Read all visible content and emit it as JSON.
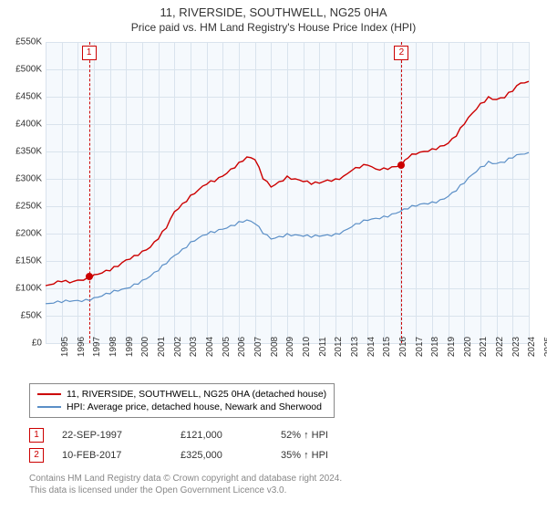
{
  "title": "11, RIVERSIDE, SOUTHWELL, NG25 0HA",
  "subtitle": "Price paid vs. HM Land Registry's House Price Index (HPI)",
  "chart": {
    "type": "line",
    "background_color": "#f5f9fd",
    "grid_color": "#d9e3ed",
    "ylim": [
      0,
      550000
    ],
    "ytick_step": 50000,
    "y_labels": [
      "£0",
      "£50K",
      "£100K",
      "£150K",
      "£200K",
      "£250K",
      "£300K",
      "£350K",
      "£400K",
      "£450K",
      "£500K",
      "£550K"
    ],
    "xlim": [
      1995,
      2025
    ],
    "x_labels": [
      "1995",
      "1996",
      "1997",
      "1998",
      "1999",
      "2000",
      "2001",
      "2002",
      "2003",
      "2004",
      "2005",
      "2006",
      "2007",
      "2008",
      "2009",
      "2010",
      "2011",
      "2012",
      "2013",
      "2014",
      "2015",
      "2016",
      "2017",
      "2018",
      "2019",
      "2020",
      "2021",
      "2022",
      "2023",
      "2024",
      "2025"
    ],
    "label_fontsize": 10,
    "series": [
      {
        "name": "property",
        "color": "#cc0000",
        "line_width": 1.4,
        "data": [
          [
            1995,
            105000
          ],
          [
            1995.5,
            108000
          ],
          [
            1996,
            112000
          ],
          [
            1996.5,
            110000
          ],
          [
            1997,
            115000
          ],
          [
            1997.7,
            121000
          ],
          [
            1998,
            125000
          ],
          [
            1998.5,
            128000
          ],
          [
            1999,
            132000
          ],
          [
            1999.5,
            140000
          ],
          [
            2000,
            152000
          ],
          [
            2000.5,
            160000
          ],
          [
            2001,
            168000
          ],
          [
            2001.5,
            175000
          ],
          [
            2002,
            190000
          ],
          [
            2002.5,
            210000
          ],
          [
            2003,
            240000
          ],
          [
            2003.5,
            255000
          ],
          [
            2004,
            270000
          ],
          [
            2004.5,
            280000
          ],
          [
            2005,
            290000
          ],
          [
            2005.5,
            295000
          ],
          [
            2006,
            305000
          ],
          [
            2006.5,
            318000
          ],
          [
            2007,
            330000
          ],
          [
            2007.5,
            340000
          ],
          [
            2008,
            335000
          ],
          [
            2008.5,
            300000
          ],
          [
            2009,
            285000
          ],
          [
            2009.5,
            295000
          ],
          [
            2010,
            305000
          ],
          [
            2010.5,
            300000
          ],
          [
            2011,
            295000
          ],
          [
            2011.5,
            290000
          ],
          [
            2012,
            292000
          ],
          [
            2012.5,
            298000
          ],
          [
            2013,
            300000
          ],
          [
            2013.5,
            305000
          ],
          [
            2014,
            315000
          ],
          [
            2014.5,
            320000
          ],
          [
            2015,
            325000
          ],
          [
            2015.5,
            318000
          ],
          [
            2016,
            320000
          ],
          [
            2016.5,
            322000
          ],
          [
            2017.1,
            325000
          ],
          [
            2017.5,
            338000
          ],
          [
            2018,
            345000
          ],
          [
            2018.5,
            350000
          ],
          [
            2019,
            355000
          ],
          [
            2019.5,
            360000
          ],
          [
            2020,
            365000
          ],
          [
            2020.5,
            378000
          ],
          [
            2021,
            400000
          ],
          [
            2021.5,
            420000
          ],
          [
            2022,
            438000
          ],
          [
            2022.5,
            450000
          ],
          [
            2023,
            445000
          ],
          [
            2023.5,
            448000
          ],
          [
            2024,
            460000
          ],
          [
            2024.5,
            475000
          ],
          [
            2025,
            478000
          ]
        ]
      },
      {
        "name": "hpi",
        "color": "#5b8fc7",
        "line_width": 1.2,
        "data": [
          [
            1995,
            72000
          ],
          [
            1995.5,
            73000
          ],
          [
            1996,
            74000
          ],
          [
            1996.5,
            76000
          ],
          [
            1997,
            78000
          ],
          [
            1997.5,
            80000
          ],
          [
            1998,
            83000
          ],
          [
            1998.5,
            86000
          ],
          [
            1999,
            90000
          ],
          [
            1999.5,
            95000
          ],
          [
            2000,
            100000
          ],
          [
            2000.5,
            108000
          ],
          [
            2001,
            115000
          ],
          [
            2001.5,
            122000
          ],
          [
            2002,
            132000
          ],
          [
            2002.5,
            145000
          ],
          [
            2003,
            160000
          ],
          [
            2003.5,
            172000
          ],
          [
            2004,
            185000
          ],
          [
            2004.5,
            192000
          ],
          [
            2005,
            198000
          ],
          [
            2005.5,
            202000
          ],
          [
            2006,
            208000
          ],
          [
            2006.5,
            215000
          ],
          [
            2007,
            222000
          ],
          [
            2007.5,
            225000
          ],
          [
            2008,
            218000
          ],
          [
            2008.5,
            200000
          ],
          [
            2009,
            190000
          ],
          [
            2009.5,
            195000
          ],
          [
            2010,
            200000
          ],
          [
            2010.5,
            198000
          ],
          [
            2011,
            195000
          ],
          [
            2011.5,
            193000
          ],
          [
            2012,
            195000
          ],
          [
            2012.5,
            198000
          ],
          [
            2013,
            200000
          ],
          [
            2013.5,
            205000
          ],
          [
            2014,
            212000
          ],
          [
            2014.5,
            218000
          ],
          [
            2015,
            224000
          ],
          [
            2015.5,
            228000
          ],
          [
            2016,
            232000
          ],
          [
            2016.5,
            236000
          ],
          [
            2017,
            240000
          ],
          [
            2017.5,
            245000
          ],
          [
            2018,
            250000
          ],
          [
            2018.5,
            255000
          ],
          [
            2019,
            258000
          ],
          [
            2019.5,
            262000
          ],
          [
            2020,
            268000
          ],
          [
            2020.5,
            278000
          ],
          [
            2021,
            292000
          ],
          [
            2021.5,
            308000
          ],
          [
            2022,
            322000
          ],
          [
            2022.5,
            332000
          ],
          [
            2023,
            328000
          ],
          [
            2023.5,
            330000
          ],
          [
            2024,
            338000
          ],
          [
            2024.5,
            345000
          ],
          [
            2025,
            348000
          ]
        ]
      }
    ],
    "markers": [
      {
        "id": "1",
        "x": 1997.7,
        "y": 121000,
        "line_color": "#cc0000",
        "dot_color": "#cc0000"
      },
      {
        "id": "2",
        "x": 2017.1,
        "y": 325000,
        "line_color": "#cc0000",
        "dot_color": "#cc0000"
      }
    ]
  },
  "legend": {
    "items": [
      {
        "color": "#cc0000",
        "label": "11, RIVERSIDE, SOUTHWELL, NG25 0HA (detached house)"
      },
      {
        "color": "#5b8fc7",
        "label": "HPI: Average price, detached house, Newark and Sherwood"
      }
    ]
  },
  "sales": [
    {
      "id": "1",
      "date": "22-SEP-1997",
      "price": "£121,000",
      "pct": "52% ↑ HPI"
    },
    {
      "id": "2",
      "date": "10-FEB-2017",
      "price": "£325,000",
      "pct": "35% ↑ HPI"
    }
  ],
  "footer_line1": "Contains HM Land Registry data © Crown copyright and database right 2024.",
  "footer_line2": "This data is licensed under the Open Government Licence v3.0."
}
